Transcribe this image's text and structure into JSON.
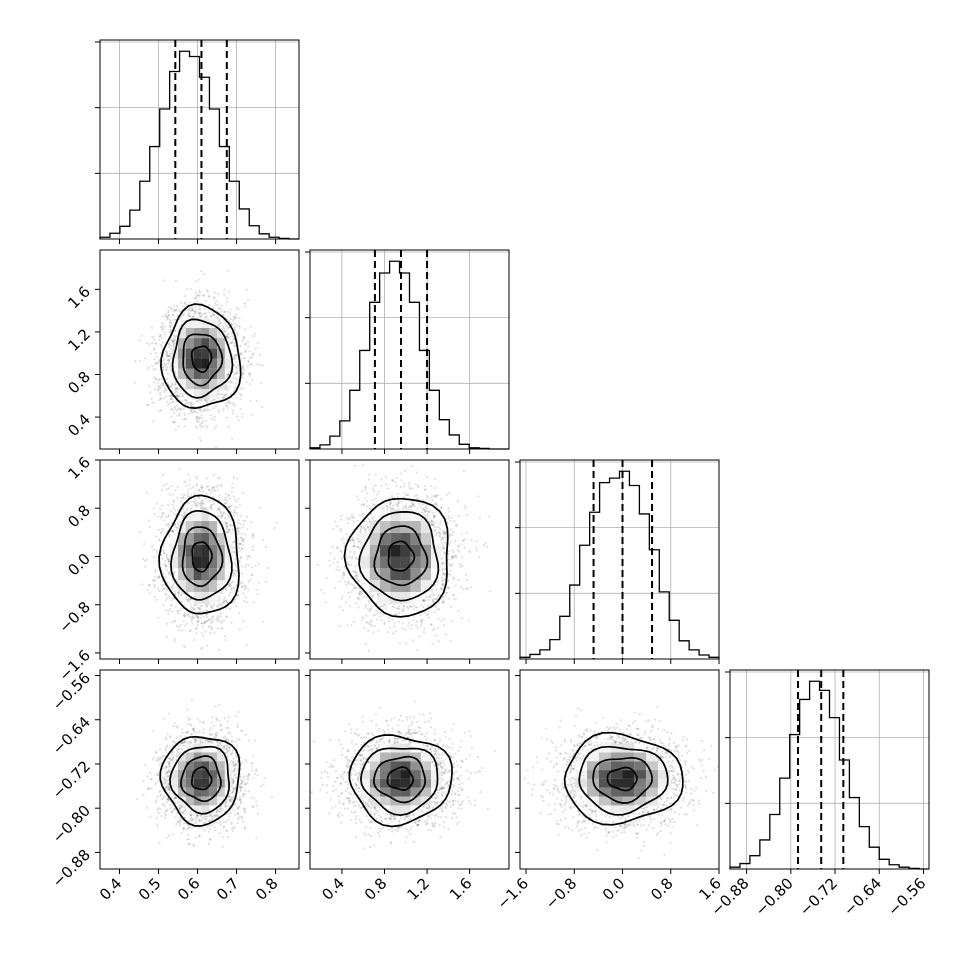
{
  "chart_data": {
    "type": "corner",
    "grid": true,
    "parameters": [
      {
        "index": 0,
        "range": [
          0.35,
          0.86
        ],
        "ticks": [
          0.4,
          0.5,
          0.6,
          0.7,
          0.8
        ],
        "tick_labels": [
          "0.4",
          "0.5",
          "0.6",
          "0.7",
          "0.8"
        ],
        "mean": 0.61,
        "std": 0.05,
        "quantiles": [
          0.543,
          0.61,
          0.675
        ],
        "hist_edges": [
          0.35,
          0.3755,
          0.401,
          0.4265,
          0.452,
          0.4775,
          0.503,
          0.5285,
          0.554,
          0.5795,
          0.605,
          0.6305,
          0.656,
          0.6815,
          0.707,
          0.7325,
          0.758,
          0.7835,
          0.809,
          0.8345,
          0.86
        ],
        "hist_counts": [
          3,
          10,
          22,
          50,
          100,
          160,
          225,
          290,
          325,
          316,
          280,
          225,
          160,
          100,
          52,
          23,
          9,
          3,
          1,
          0
        ]
      },
      {
        "index": 1,
        "range": [
          0.1,
          1.97
        ],
        "ticks": [
          0.4,
          0.8,
          1.2,
          1.6
        ],
        "tick_labels": [
          "0.4",
          "0.8",
          "1.2",
          "1.6"
        ],
        "mean": 0.95,
        "std": 0.24,
        "quantiles": [
          0.71,
          0.955,
          1.2
        ],
        "hist_edges": [
          0.1,
          0.1935,
          0.287,
          0.3805,
          0.474,
          0.5675,
          0.661,
          0.7545,
          0.848,
          0.9415,
          1.035,
          1.1285,
          1.222,
          1.3155,
          1.409,
          1.5025,
          1.596,
          1.6895,
          1.783,
          1.8765,
          1.97
        ],
        "hist_counts": [
          2,
          7,
          22,
          48,
          100,
          168,
          250,
          300,
          320,
          300,
          250,
          168,
          100,
          50,
          24,
          8,
          2,
          1,
          0,
          0
        ]
      },
      {
        "index": 2,
        "range": [
          -1.7,
          1.6
        ],
        "ticks": [
          -1.6,
          -0.8,
          0.0,
          0.8,
          1.6
        ],
        "tick_labels": [
          "−1.6",
          "−0.8",
          "0.0",
          "0.8",
          "1.6"
        ],
        "mean": 0.0,
        "std": 0.49,
        "quantiles": [
          -0.48,
          0.0,
          0.49
        ],
        "hist_edges": [
          -1.7,
          -1.535,
          -1.37,
          -1.205,
          -1.04,
          -0.875,
          -0.71,
          -0.545,
          -0.38,
          -0.215,
          -0.05,
          0.115,
          0.28,
          0.445,
          0.61,
          0.775,
          0.94,
          1.105,
          1.27,
          1.435,
          1.6
        ],
        "hist_counts": [
          3,
          8,
          16,
          34,
          75,
          130,
          200,
          258,
          310,
          318,
          330,
          305,
          255,
          192,
          118,
          68,
          32,
          16,
          7,
          3
        ]
      },
      {
        "index": 3,
        "range": [
          -0.91,
          -0.55
        ],
        "ticks": [
          -0.88,
          -0.8,
          -0.72,
          -0.64,
          -0.56
        ],
        "tick_labels": [
          "−0.88",
          "−0.80",
          "−0.72",
          "−0.64",
          "−0.56"
        ],
        "mean": -0.747,
        "std": 0.04,
        "quantiles": [
          -0.787,
          -0.745,
          -0.705
        ],
        "hist_edges": [
          -0.91,
          -0.892,
          -0.874,
          -0.856,
          -0.838,
          -0.82,
          -0.802,
          -0.784,
          -0.766,
          -0.748,
          -0.73,
          -0.712,
          -0.694,
          -0.676,
          -0.658,
          -0.64,
          -0.622,
          -0.604,
          -0.586,
          -0.568,
          -0.55
        ],
        "hist_counts": [
          3,
          9,
          22,
          48,
          90,
          150,
          222,
          280,
          310,
          295,
          250,
          180,
          118,
          70,
          36,
          16,
          7,
          3,
          1,
          0
        ]
      }
    ],
    "pairs": [
      {
        "x": 0,
        "y": 1,
        "center": [
          0.61,
          0.95
        ]
      },
      {
        "x": 0,
        "y": 2,
        "center": [
          0.61,
          0.0
        ]
      },
      {
        "x": 1,
        "y": 2,
        "center": [
          0.95,
          0.0
        ]
      },
      {
        "x": 0,
        "y": 3,
        "center": [
          0.61,
          -0.747
        ]
      },
      {
        "x": 1,
        "y": 3,
        "center": [
          0.95,
          -0.747
        ]
      },
      {
        "x": 2,
        "y": 3,
        "center": [
          0.0,
          -0.747
        ]
      }
    ],
    "contour_levels_sigma": [
      0.5,
      1.0,
      1.5,
      2.0
    ],
    "colors": {
      "ink": "#000000",
      "grid": "#b0b0b0",
      "density_light": "#ffffff",
      "density_dark": "#1e1e1e"
    }
  }
}
